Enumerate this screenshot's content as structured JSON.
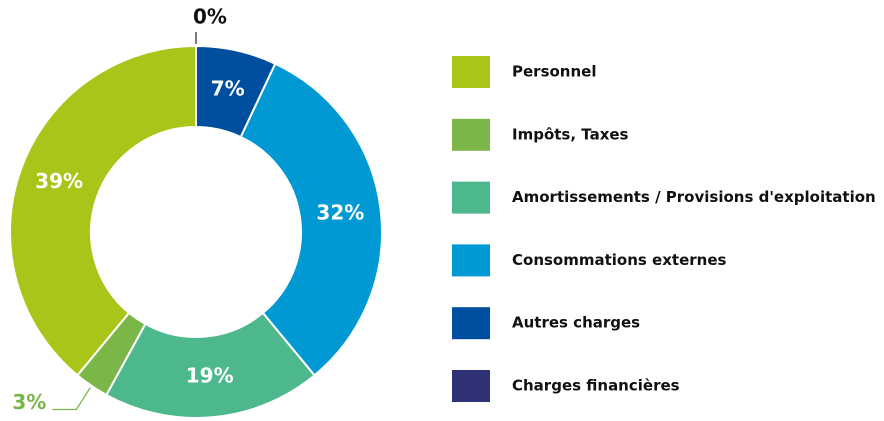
{
  "chart_data": {
    "type": "donut",
    "categories": [
      "Personnel",
      "Impôts, Taxes",
      "Amortissements / Provisions d'exploitation",
      "Consommations externes",
      "Autres charges",
      "Charges financières"
    ],
    "values": [
      39,
      3,
      19,
      32,
      7,
      0
    ],
    "value_labels": [
      "39%",
      "3%",
      "19%",
      "32%",
      "7%",
      "0%"
    ],
    "colors": [
      "#a8c619",
      "#7ab648",
      "#4db88c",
      "#0099d4",
      "#004f9f",
      "#2e3273"
    ]
  }
}
